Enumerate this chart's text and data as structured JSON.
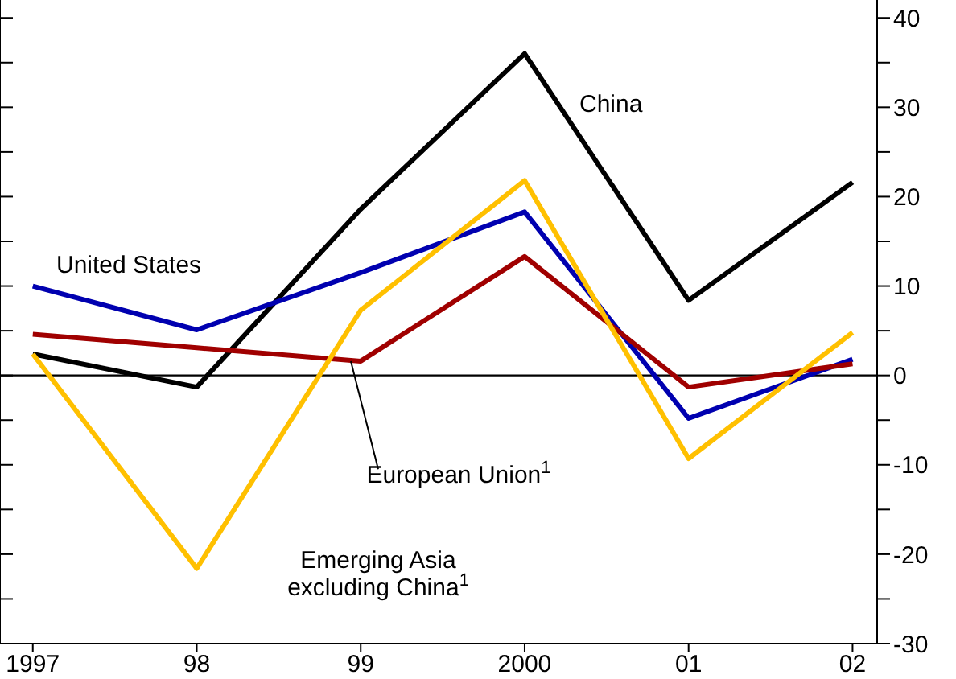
{
  "chart_data": {
    "type": "line",
    "x": [
      1997,
      1998,
      1999,
      2000,
      2001,
      2002
    ],
    "xlim": [
      1996.8,
      2002.15
    ],
    "xticks": [
      1997,
      {
        "value": 1998,
        "label": "98"
      },
      {
        "value": 1999,
        "label": "99"
      },
      2000,
      {
        "value": 2001,
        "label": "01"
      },
      {
        "value": 2002,
        "label": "02"
      }
    ],
    "ylim": [
      -30,
      42
    ],
    "yticks": [
      -30,
      {
        "value": -25,
        "label": null
      },
      -20,
      {
        "value": -15,
        "label": null
      },
      -10,
      {
        "value": -5,
        "label": null
      },
      0,
      {
        "value": 5,
        "label": null
      },
      10,
      {
        "value": 15,
        "label": null
      },
      20,
      {
        "value": 25,
        "label": null
      },
      30,
      {
        "value": 35,
        "label": null
      },
      40
    ],
    "series": [
      {
        "name": "China",
        "color": "#000000",
        "values": [
          2.4,
          -1.3,
          18.6,
          36,
          8.4,
          21.6
        ]
      },
      {
        "name": "United States",
        "color": "#0000b0",
        "values": [
          10,
          5.1,
          11.5,
          18.3,
          -4.8,
          1.8
        ]
      },
      {
        "name": "European Union$^{1}$",
        "color": "#a00000",
        "values": [
          4.6,
          3.1,
          1.6,
          13.3,
          -1.3,
          1.3
        ]
      },
      {
        "name": "Emerging Asia excluding China$^{1}$",
        "color": "#ffc000",
        "values": [
          2.4,
          -21.6,
          7.3,
          21.8,
          -9.3,
          4.8
        ]
      }
    ],
    "ref_lines": [
      {
        "axis": "y",
        "value": 0,
        "color": "#000000"
      }
    ],
    "legend": false,
    "grid": false,
    "marker": "none",
    "line_style": "solid"
  }
}
